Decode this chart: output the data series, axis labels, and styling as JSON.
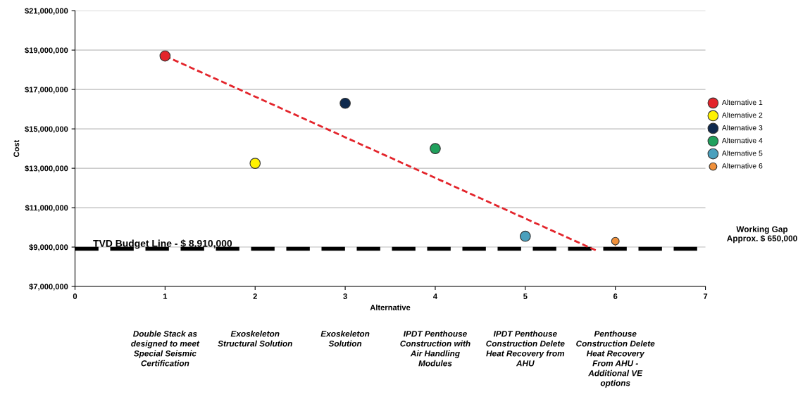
{
  "chart_data": {
    "type": "scatter",
    "xlabel": "Alternative",
    "ylabel": "Cost",
    "series": [
      {
        "name": "Alternative 1",
        "color": "#e3242b",
        "x": [
          1
        ],
        "values": [
          18700000
        ]
      },
      {
        "name": "Alternative 2",
        "color": "#fff200",
        "x": [
          2
        ],
        "values": [
          13250000
        ]
      },
      {
        "name": "Alternative 3",
        "color": "#0f2a4e",
        "x": [
          3
        ],
        "values": [
          16300000
        ]
      },
      {
        "name": "Alternative 4",
        "color": "#20a05c",
        "x": [
          4
        ],
        "values": [
          14000000
        ]
      },
      {
        "name": "Alternative 5",
        "color": "#4aa0bd",
        "x": [
          5
        ],
        "values": [
          9550000
        ]
      },
      {
        "name": "Alternative 6",
        "color": "#f0903a",
        "x": [
          6
        ],
        "values": [
          9300000
        ]
      },
      {
        "type": "line",
        "color": "#e3242b",
        "line_style": "dashed",
        "marker": "none",
        "x": [
          1,
          5.8
        ],
        "values": [
          18700000,
          8800000
        ]
      }
    ],
    "xlim": [
      0,
      7
    ],
    "xticks": [
      0,
      1,
      2,
      3,
      4,
      5,
      6,
      7
    ],
    "ylim": [
      7000000,
      21000000
    ],
    "yticks": [
      {
        "value": 7000000,
        "label": "$7,000,000"
      },
      {
        "value": 9000000,
        "label": "$9,000,000"
      },
      {
        "value": 11000000,
        "label": "$11,000,000"
      },
      {
        "value": 13000000,
        "label": "$13,000,000"
      },
      {
        "value": 15000000,
        "label": "$15,000,000"
      },
      {
        "value": 17000000,
        "label": "$17,000,000"
      },
      {
        "value": 19000000,
        "label": "$19,000,000"
      },
      {
        "value": 21000000,
        "label": "$21,000,000"
      }
    ],
    "ref_lines": [
      {
        "axis": "y",
        "value": 8910000,
        "label": "TVD Budget Line - $ 8,910,000",
        "color": "#000000",
        "line_style": "dashed"
      }
    ],
    "annotations": [
      "Double Stack as designed to meet Special Seismic Certification",
      "Exoskeleton Structural Solution",
      "Exoskeleton Solution",
      "IPDT Penthouse Construction with Air Handling Modules",
      "IPDT Penthouse Construction Delete Heat Recovery from AHU",
      "Penthouse Construction Delete Heat Recovery From AHU - Additional VE options",
      "Working Gap Approx. $ 650,000"
    ],
    "grid": "y",
    "legend": "right",
    "marker": "circle"
  }
}
